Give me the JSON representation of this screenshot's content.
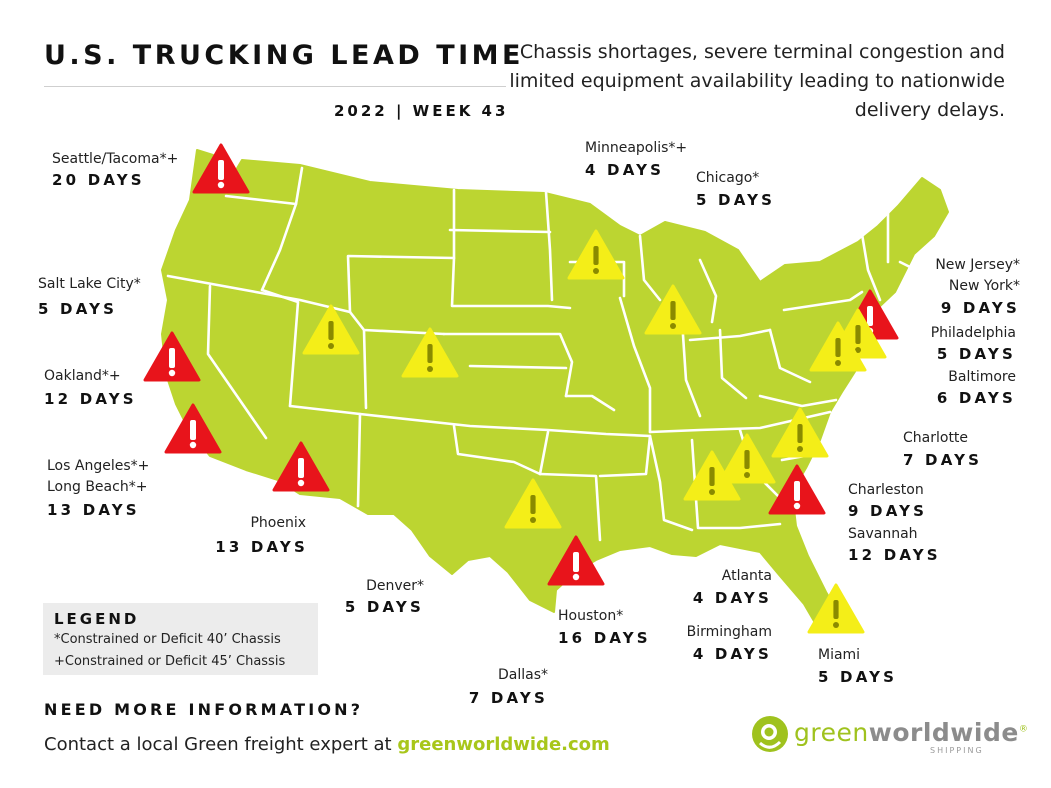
{
  "header": {
    "title": "U.S. TRUCKING LEAD TIME",
    "week": "2022 | WEEK 43",
    "subtitle": "Chassis shortages, severe terminal congestion and limited equipment availability leading to nationwide delivery delays."
  },
  "colors": {
    "map_fill": "#bcd531",
    "state_border": "#ffffff",
    "warning_red": "#e8141b",
    "warning_yellow": "#f4ee18",
    "brand_green": "#a8c61a"
  },
  "cities": [
    {
      "name": "Seattle/Tacoma*+",
      "lead_time": "20 DAYS",
      "severity": "red"
    },
    {
      "name": "Salt Lake City*",
      "lead_time": "5 DAYS",
      "severity": "yellow"
    },
    {
      "name": "Oakland*+",
      "lead_time": "12 DAYS",
      "severity": "red"
    },
    {
      "name": "Los Angeles*+",
      "name2": "Long Beach*+",
      "lead_time": "13 DAYS",
      "severity": "red"
    },
    {
      "name": "Phoenix",
      "lead_time": "13 DAYS",
      "severity": "red"
    },
    {
      "name": "Denver*",
      "lead_time": "5 DAYS",
      "severity": "yellow"
    },
    {
      "name": "Dallas*",
      "lead_time": "7 DAYS",
      "severity": "yellow"
    },
    {
      "name": "Houston*",
      "lead_time": "16 DAYS",
      "severity": "red"
    },
    {
      "name": "Minneapolis*+",
      "lead_time": "4 DAYS",
      "severity": "yellow"
    },
    {
      "name": "Chicago*",
      "lead_time": "5 DAYS",
      "severity": "yellow"
    },
    {
      "name": "New Jersey*",
      "name2": "New York*",
      "lead_time": "9 DAYS",
      "severity": "red"
    },
    {
      "name": "Philadelphia",
      "lead_time": "5 DAYS",
      "severity": "yellow"
    },
    {
      "name": "Baltimore",
      "lead_time": "6 DAYS",
      "severity": "yellow"
    },
    {
      "name": "Charlotte",
      "lead_time": "7 DAYS",
      "severity": "yellow"
    },
    {
      "name": "Charleston",
      "lead_time": "9 DAYS",
      "severity": "red"
    },
    {
      "name": "Savannah",
      "lead_time": "12 DAYS",
      "severity": "red"
    },
    {
      "name": "Atlanta",
      "lead_time": "4 DAYS",
      "severity": "yellow"
    },
    {
      "name": "Birmingham",
      "lead_time": "4 DAYS",
      "severity": "yellow"
    },
    {
      "name": "Miami",
      "lead_time": "5 DAYS",
      "severity": "yellow"
    }
  ],
  "legend": {
    "title": "LEGEND",
    "items": [
      "*Constrained or Deficit 40’ Chassis",
      "+Constrained or Deficit 45’ Chassis"
    ]
  },
  "footer": {
    "more_title": "NEED MORE INFORMATION?",
    "contact_text": "Contact a local Green freight expert at ",
    "contact_link": "greenworldwide.com"
  },
  "logo": {
    "part1": "green",
    "part2": "worldwide",
    "registered": "®",
    "sub": "SHIPPING"
  }
}
